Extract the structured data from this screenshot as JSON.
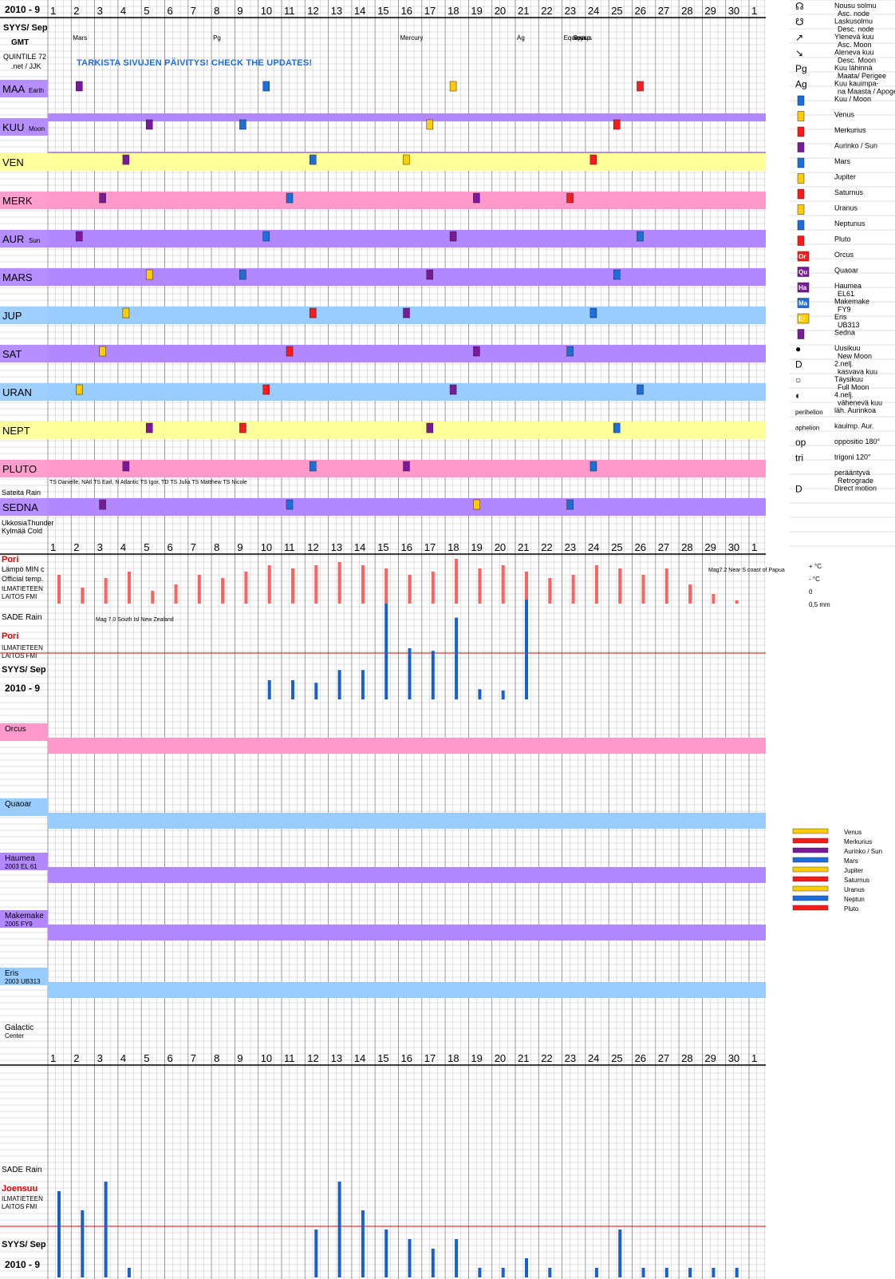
{
  "header": {
    "period": "2010 - 9",
    "month": "SYYS/ Sep",
    "tz": "GMT",
    "source_line1": "QUINTILE 72",
    "source_line2": ".net / JJK",
    "notice": "TARKISTA SIVUJEN PÄIVITYS!   CHECK THE UPDATES!",
    "top_events": [
      {
        "day": 2,
        "text": "Mars"
      },
      {
        "day": 8,
        "text": "Pg"
      },
      {
        "day": 16,
        "text": "Mercury"
      },
      {
        "day": 21,
        "text": "Ag"
      },
      {
        "day": 23,
        "text": "Equinox"
      },
      {
        "day": 23.4,
        "text": "Syysp."
      },
      {
        "day": 23.4,
        "text": "tasaus"
      }
    ]
  },
  "days": [
    "1",
    "2",
    "3",
    "4",
    "5",
    "6",
    "7",
    "8",
    "9",
    "10",
    "11",
    "12",
    "13",
    "14",
    "15",
    "16",
    "17",
    "18",
    "19",
    "20",
    "21",
    "22",
    "23",
    "24",
    "25",
    "26",
    "27",
    "28",
    "29",
    "30",
    "1"
  ],
  "colors": {
    "purple": "#b388ff",
    "pink": "#ff99cc",
    "blue": "#99ccff",
    "yellow": "#ffff99",
    "grid": "#c0c0c0",
    "moon": "#1a6fdc",
    "venus": "#ffcc00",
    "mercury": "#ff1a1a",
    "sun": "#7a1a9a",
    "mars": "#1a6fdc",
    "rain": "#1a5fd0",
    "temp": "#ff6060"
  },
  "planet_rows": [
    {
      "label": "MAA",
      "sub": "Earth",
      "color": "purple",
      "bg": false
    },
    {
      "label": "KUU",
      "sub": "Moon",
      "color": "purple",
      "bg": false
    },
    {
      "label": "VEN",
      "sub": "",
      "color": "yellow",
      "bg": true
    },
    {
      "label": "MERK",
      "sub": "",
      "color": "pink",
      "bg": true
    },
    {
      "label": "AUR",
      "sub": "Sun",
      "color": "purple",
      "bg": true
    },
    {
      "label": "MARS",
      "sub": "",
      "color": "purple",
      "bg": true
    },
    {
      "label": "JUP",
      "sub": "",
      "color": "blue",
      "bg": true
    },
    {
      "label": "SAT",
      "sub": "",
      "color": "purple",
      "bg": true
    },
    {
      "label": "URAN",
      "sub": "",
      "color": "blue",
      "bg": true
    },
    {
      "label": "NEPT",
      "sub": "",
      "color": "yellow",
      "bg": true
    },
    {
      "label": "PLUTO",
      "sub": "",
      "color": "pink",
      "bg": true
    },
    {
      "label": "SEDNA",
      "sub": "",
      "color": "purple",
      "bg": true
    }
  ],
  "legend": [
    {
      "sym": "☊",
      "text": "Nousu solmu",
      "text2": "Asc. node"
    },
    {
      "sym": "☋",
      "text": "Laskusolmu",
      "text2": "Desc. node"
    },
    {
      "sym": "↗",
      "text": "Ylenevä kuu",
      "text2": "Asc. Moon"
    },
    {
      "sym": "↘",
      "text": "Aleneva kuu",
      "text2": "Desc. Moon"
    },
    {
      "sym": "Pg",
      "text": "Kuu lähinnä",
      "text2": "Maata/ Perigee"
    },
    {
      "sym": "Ag",
      "text": "Kuu kauimpa-",
      "text2": "na Maasta / Apogee"
    },
    {
      "sym": "",
      "text": "Kuu / Moon",
      "text2": "",
      "color": "#1a6fdc"
    },
    {
      "sym": "",
      "text": "Venus",
      "text2": "",
      "color": "#ffcc00"
    },
    {
      "sym": "",
      "text": "Merkurius",
      "text2": "",
      "color": "#ff1a1a"
    },
    {
      "sym": "",
      "text": "Aurinko / Sun",
      "text2": "",
      "color": "#7a1a9a"
    },
    {
      "sym": "",
      "text": "Mars",
      "text2": "",
      "color": "#1a6fdc"
    },
    {
      "sym": "",
      "text": "Jupiter",
      "text2": "",
      "color": "#ffcc00"
    },
    {
      "sym": "",
      "text": "Saturnus",
      "text2": "",
      "color": "#ff1a1a"
    },
    {
      "sym": "",
      "text": "Uranus",
      "text2": "",
      "color": "#ffcc00"
    },
    {
      "sym": "",
      "text": "Neptunus",
      "text2": "",
      "color": "#1a6fdc"
    },
    {
      "sym": "",
      "text": "Pluto",
      "text2": "",
      "color": "#ff1a1a"
    },
    {
      "sym": "Or",
      "text": "Orcus",
      "text2": "",
      "color": "#ff1a1a"
    },
    {
      "sym": "Qu",
      "text": "Quaoar",
      "text2": "",
      "color": "#7a1a9a"
    },
    {
      "sym": "Ha",
      "text": "Haumea",
      "text2": "EL61",
      "color": "#7a1a9a"
    },
    {
      "sym": "Ma",
      "text": "Makemake",
      "text2": "FY9",
      "color": "#1a6fdc"
    },
    {
      "sym": "Er",
      "text": "Eris",
      "text2": "UB313",
      "color": "#ffcc00"
    },
    {
      "sym": "",
      "text": "Sedna",
      "text2": "",
      "color": "#7a1a9a"
    },
    {
      "sym": "●",
      "text": "Uusikuu",
      "text2": "New Moon"
    },
    {
      "sym": "D",
      "text": "2.nelj.",
      "text2": "kasvava kuu"
    },
    {
      "sym": "○",
      "text": "Täysikuu",
      "text2": "Full Moon"
    },
    {
      "sym": "◐",
      "text": "4.nelj.",
      "text2": "vähenevä kuu"
    },
    {
      "sym": "perihelion",
      "text": "läh. Aurinkoa",
      "text2": ""
    },
    {
      "sym": "aphelion",
      "text": "kauimp. Aur.",
      "text2": ""
    },
    {
      "sym": "op",
      "text": "oppositio 180°",
      "text2": ""
    },
    {
      "sym": "tri",
      "text": "trigoni 120°",
      "text2": ""
    },
    {
      "sym": "",
      "text": "perääntyvä",
      "text2": "Retrograde"
    },
    {
      "sym": "D",
      "text": "Direct motion",
      "text2": ""
    }
  ],
  "weather": {
    "rain_label": "Sateita Rain",
    "cold_label": "UkkosiaThunder",
    "cold_label2": "Kylmää Cold",
    "pori": "Pori",
    "temp_label": "Lämpö MIN c",
    "official": "Official temp.",
    "ilmatieteen": "ILMATIETEEN",
    "laitos": "LAITOS  FMI",
    "sade": "SADE Rain",
    "joensuu": "Joensuu",
    "temp_legend": [
      "+ °C",
      "- °C",
      "0",
      "0,5 mm"
    ],
    "quake_note": "Mag 7.0 South Isl New Zealand",
    "quake_note2": "Mag7.2 Near S coast of Papua",
    "storms": "TS Danielle, NAtl   TS Earl, N Atlantic   TS Igor, TD   TS Julia   TS Matthew   TS Nicole"
  },
  "tno_rows": [
    {
      "label": "Orcus",
      "sub": "",
      "color": "pink"
    },
    {
      "label": "Quaoar",
      "sub": "",
      "color": "blue"
    },
    {
      "label": "Haumea",
      "sub": "2003 EL 61",
      "color": "purple"
    },
    {
      "label": "Makemake",
      "sub": "2005 FY9",
      "color": "purple"
    },
    {
      "label": "Eris",
      "sub": "2003 UB313",
      "color": "blue"
    },
    {
      "label": "Galactic",
      "sub": "Center",
      "color": "none"
    }
  ],
  "bar_legend": [
    "Venus",
    "Merkurius",
    "Aurinko / Sun",
    "Mars",
    "Jupiter",
    "Saturnus",
    "Uranus",
    "Neptun",
    "Pluto"
  ],
  "chart_data": [
    {
      "type": "bar",
      "title": "SADE Rain Pori",
      "categories": [
        "1",
        "2",
        "3",
        "4",
        "5",
        "6",
        "7",
        "8",
        "9",
        "10",
        "11",
        "12",
        "13",
        "14",
        "15",
        "16",
        "17",
        "18",
        "19",
        "20",
        "21",
        "22",
        "23",
        "24",
        "25",
        "26",
        "27",
        "28",
        "29",
        "30"
      ],
      "values": [
        0,
        0,
        0,
        0,
        0,
        0,
        0,
        0,
        0,
        1.5,
        1.5,
        1.3,
        2.3,
        2.3,
        7.5,
        4.0,
        3.8,
        6.4,
        0.8,
        0.7,
        7.8,
        0,
        0,
        0,
        0,
        0,
        0,
        0,
        0,
        0
      ]
    },
    {
      "type": "bar",
      "title": "Lämpö MIN c Pori",
      "categories": [
        "1",
        "2",
        "3",
        "4",
        "5",
        "6",
        "7",
        "8",
        "9",
        "10",
        "11",
        "12",
        "13",
        "14",
        "15",
        "16",
        "17",
        "18",
        "19",
        "20",
        "21",
        "22",
        "23",
        "24",
        "25",
        "26",
        "27",
        "28",
        "29",
        "30"
      ],
      "values": [
        9,
        5,
        8,
        10,
        4,
        6,
        9,
        8,
        10,
        12,
        11,
        12,
        13,
        12,
        11,
        9,
        10,
        14,
        11,
        12,
        10,
        8,
        9,
        12,
        11,
        9,
        11,
        6,
        3,
        1
      ]
    },
    {
      "type": "bar",
      "title": "SADE Rain Joensuu",
      "categories": [
        "1",
        "2",
        "3",
        "4",
        "5",
        "6",
        "7",
        "8",
        "9",
        "10",
        "11",
        "12",
        "13",
        "14",
        "15",
        "16",
        "17",
        "18",
        "19",
        "20",
        "21",
        "22",
        "23",
        "24",
        "25",
        "26",
        "27",
        "28",
        "29",
        "30"
      ],
      "values": [
        9,
        7,
        10,
        1,
        0,
        0,
        0,
        0,
        0,
        0,
        0,
        5,
        10,
        7,
        5,
        4,
        3,
        4,
        1,
        1,
        2,
        1,
        0,
        1,
        5,
        1,
        1,
        1,
        1,
        1
      ]
    }
  ]
}
